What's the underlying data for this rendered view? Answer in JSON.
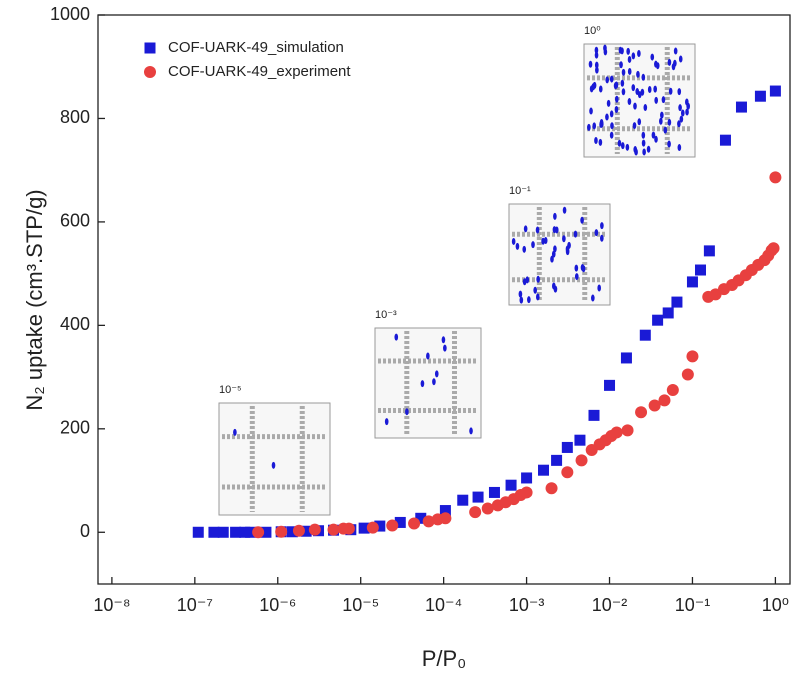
{
  "chart_data": {
    "type": "scatter",
    "x_label": "P/P₀",
    "y_label": "N₂ uptake (cm³.STP/g)",
    "log_x": true,
    "xlim": [
      6.8e-09,
      1.5
    ],
    "ylim": [
      -100,
      1000
    ],
    "xticks": [
      {
        "value": 1e-08,
        "label": "10⁻⁸"
      },
      {
        "value": 1e-07,
        "label": "10⁻⁷"
      },
      {
        "value": 1e-06,
        "label": "10⁻⁶"
      },
      {
        "value": 1e-05,
        "label": "10⁻⁵"
      },
      {
        "value": 0.0001,
        "label": "10⁻⁴"
      },
      {
        "value": 0.001,
        "label": "10⁻³"
      },
      {
        "value": 0.01,
        "label": "10⁻²"
      },
      {
        "value": 0.1,
        "label": "10⁻¹"
      },
      {
        "value": 1,
        "label": "10⁰"
      }
    ],
    "yticks": [
      0,
      200,
      400,
      600,
      800,
      1000
    ],
    "legend": "top-left",
    "annotations": [
      "10⁻⁵",
      "10⁻³",
      "10⁻¹",
      "10⁰"
    ],
    "series": [
      {
        "name": "COF-UARK-49_simulation",
        "color": "#1a1ad6",
        "marker": "square",
        "x": [
          1.1e-07,
          1.7e-07,
          2.2e-07,
          3.1e-07,
          4e-07,
          4.7e-07,
          7.2e-07,
          1.1e-06,
          1.5e-06,
          2.2e-06,
          3.1e-06,
          4.7e-06,
          7.6e-06,
          1.1e-05,
          1.7e-05,
          3e-05,
          5.3e-05,
          0.000105,
          0.00017,
          0.00026,
          0.00041,
          0.00065,
          0.001,
          0.0016,
          0.0023,
          0.0031,
          0.0044,
          0.0065,
          0.01,
          0.016,
          0.027,
          0.038,
          0.051,
          0.065,
          0.1,
          0.125,
          0.16,
          0.25,
          0.39,
          0.66,
          1
        ],
        "values": [
          0,
          0,
          0,
          0,
          0,
          0,
          0,
          1,
          1,
          2,
          3,
          4,
          5,
          8,
          12,
          19,
          27,
          42,
          62,
          68,
          77,
          91,
          105,
          120,
          139,
          164,
          178,
          226,
          284,
          337,
          381,
          410,
          424,
          445,
          484,
          507,
          544,
          758,
          822,
          843,
          853
        ]
      },
      {
        "name": "COF-UARK-49_experiment",
        "color": "#e8403f",
        "marker": "circle",
        "x": [
          5.8e-07,
          1.1e-06,
          1.8e-06,
          2.8e-06,
          4.7e-06,
          6.2e-06,
          7.2e-06,
          1.4e-05,
          2.4e-05,
          4.4e-05,
          6.6e-05,
          8.5e-05,
          0.000105,
          0.00024,
          0.00034,
          0.00045,
          0.00056,
          0.0007,
          0.00085,
          0.001,
          0.002,
          0.0031,
          0.0046,
          0.0061,
          0.0076,
          0.009,
          0.0105,
          0.0122,
          0.0165,
          0.024,
          0.035,
          0.046,
          0.058,
          0.088,
          0.1,
          0.155,
          0.19,
          0.24,
          0.3,
          0.36,
          0.44,
          0.52,
          0.62,
          0.74,
          0.82,
          0.9,
          0.95,
          1
        ],
        "values": [
          0,
          1,
          3,
          5,
          5,
          7,
          7,
          9,
          13,
          17,
          21,
          25,
          27,
          39,
          46,
          52,
          58,
          64,
          72,
          77,
          85,
          116,
          139,
          159,
          170,
          178,
          186,
          193,
          197,
          232,
          245,
          255,
          275,
          305,
          340,
          455,
          460,
          470,
          478,
          487,
          497,
          507,
          517,
          526,
          535,
          545,
          549,
          686
        ]
      }
    ]
  }
}
